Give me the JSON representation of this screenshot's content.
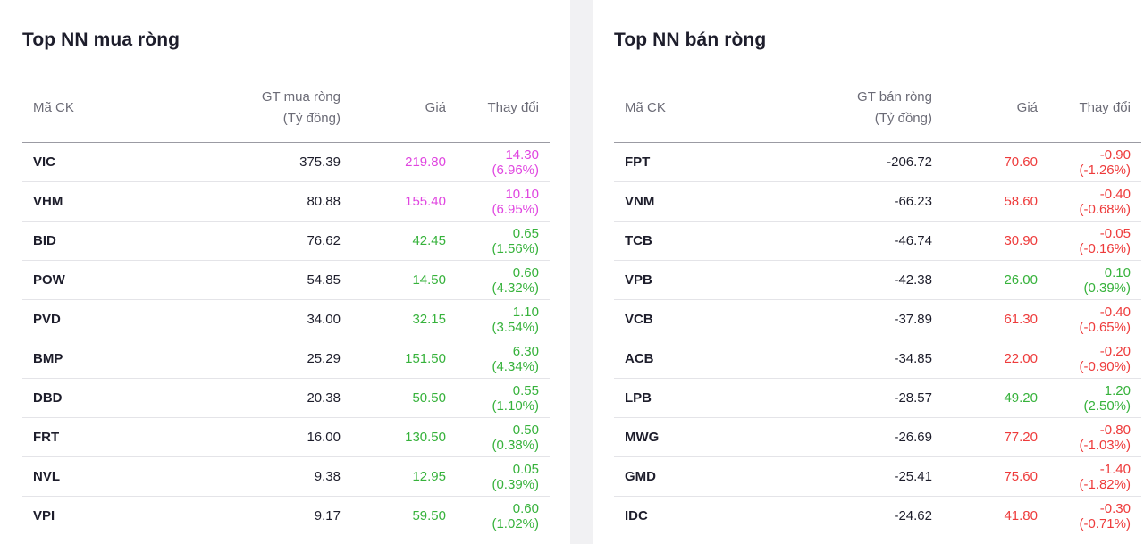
{
  "buy": {
    "title": "Top NN mua ròng",
    "headers": {
      "code": "Mã CK",
      "value_line1": "GT mua ròng",
      "value_line2": "(Tỷ đồng)",
      "price": "Giá",
      "change": "Thay đổi"
    },
    "rows": [
      {
        "code": "VIC",
        "value": "375.39",
        "price": "219.80",
        "change": "14.30 (6.96%)",
        "status": "ceiling"
      },
      {
        "code": "VHM",
        "value": "80.88",
        "price": "155.40",
        "change": "10.10 (6.95%)",
        "status": "ceiling"
      },
      {
        "code": "BID",
        "value": "76.62",
        "price": "42.45",
        "change": "0.65 (1.56%)",
        "status": "up"
      },
      {
        "code": "POW",
        "value": "54.85",
        "price": "14.50",
        "change": "0.60 (4.32%)",
        "status": "up"
      },
      {
        "code": "PVD",
        "value": "34.00",
        "price": "32.15",
        "change": "1.10 (3.54%)",
        "status": "up"
      },
      {
        "code": "BMP",
        "value": "25.29",
        "price": "151.50",
        "change": "6.30 (4.34%)",
        "status": "up"
      },
      {
        "code": "DBD",
        "value": "20.38",
        "price": "50.50",
        "change": "0.55 (1.10%)",
        "status": "up"
      },
      {
        "code": "FRT",
        "value": "16.00",
        "price": "130.50",
        "change": "0.50 (0.38%)",
        "status": "up"
      },
      {
        "code": "NVL",
        "value": "9.38",
        "price": "12.95",
        "change": "0.05 (0.39%)",
        "status": "up"
      },
      {
        "code": "VPI",
        "value": "9.17",
        "price": "59.50",
        "change": "0.60 (1.02%)",
        "status": "up"
      }
    ]
  },
  "sell": {
    "title": "Top NN bán ròng",
    "headers": {
      "code": "Mã CK",
      "value_line1": "GT bán ròng",
      "value_line2": "(Tỷ đồng)",
      "price": "Giá",
      "change": "Thay đổi"
    },
    "rows": [
      {
        "code": "FPT",
        "value": "-206.72",
        "price": "70.60",
        "change": "-0.90 (-1.26%)",
        "status": "down"
      },
      {
        "code": "VNM",
        "value": "-66.23",
        "price": "58.60",
        "change": "-0.40 (-0.68%)",
        "status": "down"
      },
      {
        "code": "TCB",
        "value": "-46.74",
        "price": "30.90",
        "change": "-0.05 (-0.16%)",
        "status": "down"
      },
      {
        "code": "VPB",
        "value": "-42.38",
        "price": "26.00",
        "change": "0.10 (0.39%)",
        "status": "up"
      },
      {
        "code": "VCB",
        "value": "-37.89",
        "price": "61.30",
        "change": "-0.40 (-0.65%)",
        "status": "down"
      },
      {
        "code": "ACB",
        "value": "-34.85",
        "price": "22.00",
        "change": "-0.20 (-0.90%)",
        "status": "down"
      },
      {
        "code": "LPB",
        "value": "-28.57",
        "price": "49.20",
        "change": "1.20 (2.50%)",
        "status": "up"
      },
      {
        "code": "MWG",
        "value": "-26.69",
        "price": "77.20",
        "change": "-0.80 (-1.03%)",
        "status": "down"
      },
      {
        "code": "GMD",
        "value": "-25.41",
        "price": "75.60",
        "change": "-1.40 (-1.82%)",
        "status": "down"
      },
      {
        "code": "IDC",
        "value": "-24.62",
        "price": "41.80",
        "change": "-0.30 (-0.71%)",
        "status": "down"
      }
    ]
  },
  "colors": {
    "ceiling": "#e046e0",
    "up": "#36b23b",
    "down": "#ee3b3b"
  }
}
